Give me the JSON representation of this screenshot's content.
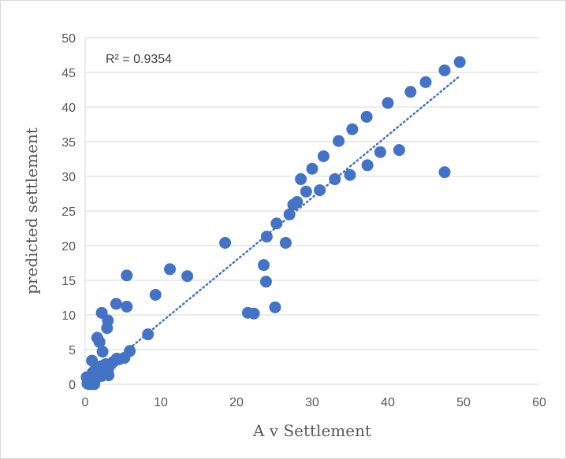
{
  "chart_data": {
    "type": "scatter",
    "xlabel": "A v Settlement",
    "ylabel": "predicted settlement",
    "xlim": [
      0,
      60
    ],
    "ylim": [
      0,
      50
    ],
    "x_ticks": [
      0,
      10,
      20,
      30,
      40,
      50,
      60
    ],
    "y_ticks": [
      0,
      5,
      10,
      15,
      20,
      25,
      30,
      35,
      40,
      45,
      50
    ],
    "grid": "horizontal",
    "annotation": "R² = 0.9354",
    "marker_color": "#4472c4",
    "trendline": {
      "type": "linear",
      "style": "dotted",
      "color": "#4472c4",
      "x": [
        1.0,
        49.3
      ],
      "y": [
        0.8,
        44.3
      ]
    },
    "points": [
      [
        49.5,
        46.5
      ],
      [
        47.5,
        45.3
      ],
      [
        45.0,
        43.6
      ],
      [
        43.0,
        42.2
      ],
      [
        40.0,
        40.6
      ],
      [
        37.2,
        38.6
      ],
      [
        35.3,
        36.8
      ],
      [
        33.5,
        35.1
      ],
      [
        31.5,
        32.9
      ],
      [
        30.0,
        31.1
      ],
      [
        28.5,
        29.6
      ],
      [
        29.2,
        27.8
      ],
      [
        28.0,
        26.3
      ],
      [
        27.5,
        25.9
      ],
      [
        27.0,
        24.5
      ],
      [
        31.0,
        28.0
      ],
      [
        33.0,
        29.6
      ],
      [
        35.0,
        30.2
      ],
      [
        37.3,
        31.6
      ],
      [
        39.0,
        33.5
      ],
      [
        41.5,
        33.8
      ],
      [
        47.5,
        30.6
      ],
      [
        25.3,
        23.2
      ],
      [
        24.0,
        21.3
      ],
      [
        26.5,
        20.4
      ],
      [
        18.5,
        20.4
      ],
      [
        23.6,
        17.2
      ],
      [
        23.9,
        14.8
      ],
      [
        25.1,
        11.1
      ],
      [
        21.5,
        10.3
      ],
      [
        22.3,
        10.2
      ],
      [
        11.2,
        16.6
      ],
      [
        13.5,
        15.6
      ],
      [
        5.5,
        15.7
      ],
      [
        5.5,
        11.2
      ],
      [
        4.1,
        11.6
      ],
      [
        2.2,
        10.3
      ],
      [
        9.3,
        12.9
      ],
      [
        8.3,
        7.2
      ],
      [
        3.0,
        9.2
      ],
      [
        2.9,
        8.1
      ],
      [
        1.6,
        6.7
      ],
      [
        1.9,
        6.1
      ],
      [
        5.9,
        4.8
      ],
      [
        2.3,
        4.7
      ],
      [
        5.2,
        3.8
      ],
      [
        4.2,
        3.7
      ],
      [
        3.8,
        3.3
      ],
      [
        3.5,
        3.0
      ],
      [
        3.2,
        2.6
      ],
      [
        2.9,
        2.4
      ],
      [
        2.6,
        2.2
      ],
      [
        2.4,
        2.0
      ],
      [
        2.0,
        1.8
      ],
      [
        1.8,
        1.5
      ],
      [
        1.5,
        1.3
      ],
      [
        1.2,
        1.1
      ],
      [
        1.0,
        0.9
      ],
      [
        0.8,
        0.7
      ],
      [
        0.6,
        0.5
      ],
      [
        0.4,
        0.3
      ],
      [
        0.3,
        0.1
      ],
      [
        0.5,
        0.0
      ],
      [
        0.7,
        0.2
      ],
      [
        0.9,
        0.0
      ],
      [
        1.1,
        0.4
      ],
      [
        1.3,
        0.6
      ],
      [
        1.0,
        1.7
      ],
      [
        0.9,
        3.4
      ],
      [
        1.4,
        2.2
      ],
      [
        2.1,
        2.6
      ],
      [
        2.5,
        1.4
      ],
      [
        3.1,
        1.3
      ],
      [
        1.6,
        2.5
      ],
      [
        0.2,
        1.0
      ],
      [
        1.2,
        0.0
      ],
      [
        2.7,
        2.9
      ],
      [
        4.5,
        3.6
      ],
      [
        3.0,
        1.8
      ],
      [
        2.2,
        1.2
      ]
    ]
  }
}
